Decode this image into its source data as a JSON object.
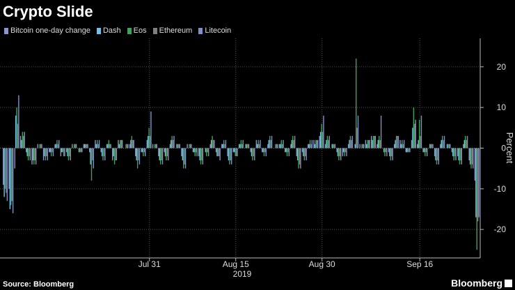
{
  "title": "Crypto Slide",
  "source": "Source: Bloomberg",
  "brand": "Bloomberg",
  "colors": {
    "Bitcoin one-day change": "#8a97cc",
    "Dash": "#6fc3e6",
    "Eos": "#3aa55a",
    "Ethereum": "#7f7f7f",
    "Litecoin": "#8390c8"
  },
  "chart_data": {
    "type": "bar",
    "ylabel": "Percent",
    "xlabel": "2019",
    "ylim": [
      -27,
      27
    ],
    "yticks": [
      20,
      10,
      0,
      -10,
      -20
    ],
    "xticks": [
      {
        "label": "Jul 31",
        "index": 25
      },
      {
        "label": "Aug 15",
        "index": 40
      },
      {
        "label": "Aug 30",
        "index": 55
      },
      {
        "label": "Sep 16",
        "index": 72
      }
    ],
    "series": [
      {
        "name": "Bitcoin one-day change",
        "values": [
          -9,
          -10,
          -5,
          3,
          -1,
          -4,
          1,
          -3,
          -1,
          1,
          -2,
          -1,
          1,
          0,
          1,
          -1,
          2,
          -1,
          1,
          -3,
          2,
          0,
          1,
          -2,
          -1,
          2,
          1,
          -2,
          -1,
          1,
          0,
          -2,
          1,
          -1,
          -2,
          0,
          1,
          -1,
          1,
          -2,
          -1,
          1,
          0,
          -1,
          2,
          -1,
          1,
          0,
          1,
          -1,
          1,
          -2,
          -1,
          1,
          2,
          3,
          1,
          0,
          -1,
          -2,
          1,
          0,
          1,
          2,
          3,
          1,
          0,
          -1,
          1,
          2,
          -1,
          2,
          1,
          -1,
          0,
          -2,
          1,
          0,
          -1,
          -2,
          1,
          -3,
          -8
        ]
      },
      {
        "name": "Dash",
        "values": [
          -12,
          -15,
          8,
          2,
          -2,
          -3,
          0,
          -2,
          -1,
          1,
          -1,
          -2,
          0,
          -1,
          1,
          -4,
          1,
          -2,
          1,
          -2,
          1,
          0,
          2,
          -3,
          -1,
          3,
          0,
          -3,
          -2,
          2,
          1,
          -3,
          0,
          -1,
          -3,
          -1,
          2,
          -2,
          1,
          -3,
          -1,
          1,
          1,
          -2,
          1,
          -1,
          2,
          0,
          1,
          -1,
          2,
          -3,
          -2,
          1,
          1,
          4,
          2,
          1,
          -2,
          -1,
          2,
          1,
          0,
          1,
          2,
          2,
          -1,
          -2,
          2,
          1,
          -1,
          5,
          2,
          -1,
          1,
          -3,
          2,
          1,
          -2,
          -3,
          2,
          -4,
          -17
        ]
      },
      {
        "name": "Eos",
        "values": [
          -10,
          -14,
          10,
          4,
          -3,
          -4,
          1,
          -3,
          -2,
          2,
          -1,
          -3,
          1,
          -1,
          1,
          -8,
          2,
          -3,
          2,
          -4,
          2,
          1,
          3,
          -5,
          -2,
          5,
          1,
          -4,
          -3,
          3,
          1,
          -5,
          1,
          -2,
          -4,
          -2,
          3,
          -2,
          2,
          -4,
          -2,
          2,
          1,
          -3,
          2,
          -2,
          3,
          1,
          2,
          -2,
          3,
          -5,
          -3,
          2,
          2,
          6,
          3,
          1,
          -3,
          -2,
          3,
          22,
          1,
          2,
          3,
          3,
          -2,
          -3,
          3,
          2,
          -1,
          10,
          7,
          -2,
          1,
          -4,
          3,
          1,
          -3,
          -4,
          3,
          -5,
          -25
        ]
      },
      {
        "name": "Ethereum",
        "values": [
          -11,
          -13,
          6,
          3,
          -2,
          -3,
          1,
          -2,
          -1,
          1,
          -2,
          -2,
          1,
          -1,
          1,
          -3,
          1,
          -2,
          1,
          -3,
          2,
          1,
          2,
          -3,
          -1,
          3,
          1,
          -3,
          -2,
          2,
          1,
          -4,
          1,
          -1,
          -3,
          -1,
          2,
          -2,
          1,
          -3,
          -2,
          1,
          1,
          -2,
          1,
          -1,
          2,
          1,
          1,
          -1,
          2,
          -4,
          -2,
          1,
          2,
          4,
          2,
          1,
          -2,
          -1,
          2,
          5,
          1,
          2,
          3,
          2,
          -1,
          -2,
          3,
          1,
          -1,
          6,
          3,
          -1,
          1,
          -3,
          2,
          1,
          -2,
          -3,
          2,
          -4,
          -18
        ]
      },
      {
        "name": "Litecoin",
        "values": [
          -13,
          -16,
          13,
          4,
          -3,
          -4,
          1,
          -3,
          -2,
          2,
          -2,
          -3,
          1,
          -1,
          1,
          -5,
          2,
          -3,
          1,
          -3,
          2,
          1,
          2,
          -4,
          -2,
          9,
          1,
          -4,
          -3,
          3,
          1,
          -5,
          1,
          -2,
          -4,
          -2,
          2,
          -3,
          2,
          -4,
          -2,
          2,
          1,
          -3,
          2,
          -2,
          3,
          1,
          2,
          -2,
          3,
          -5,
          -3,
          2,
          2,
          8,
          3,
          1,
          -3,
          -2,
          3,
          8,
          1,
          2,
          3,
          8,
          -2,
          -3,
          3,
          2,
          -1,
          7,
          8,
          -2,
          1,
          -4,
          3,
          1,
          -3,
          -4,
          3,
          -5,
          -17
        ]
      }
    ]
  }
}
